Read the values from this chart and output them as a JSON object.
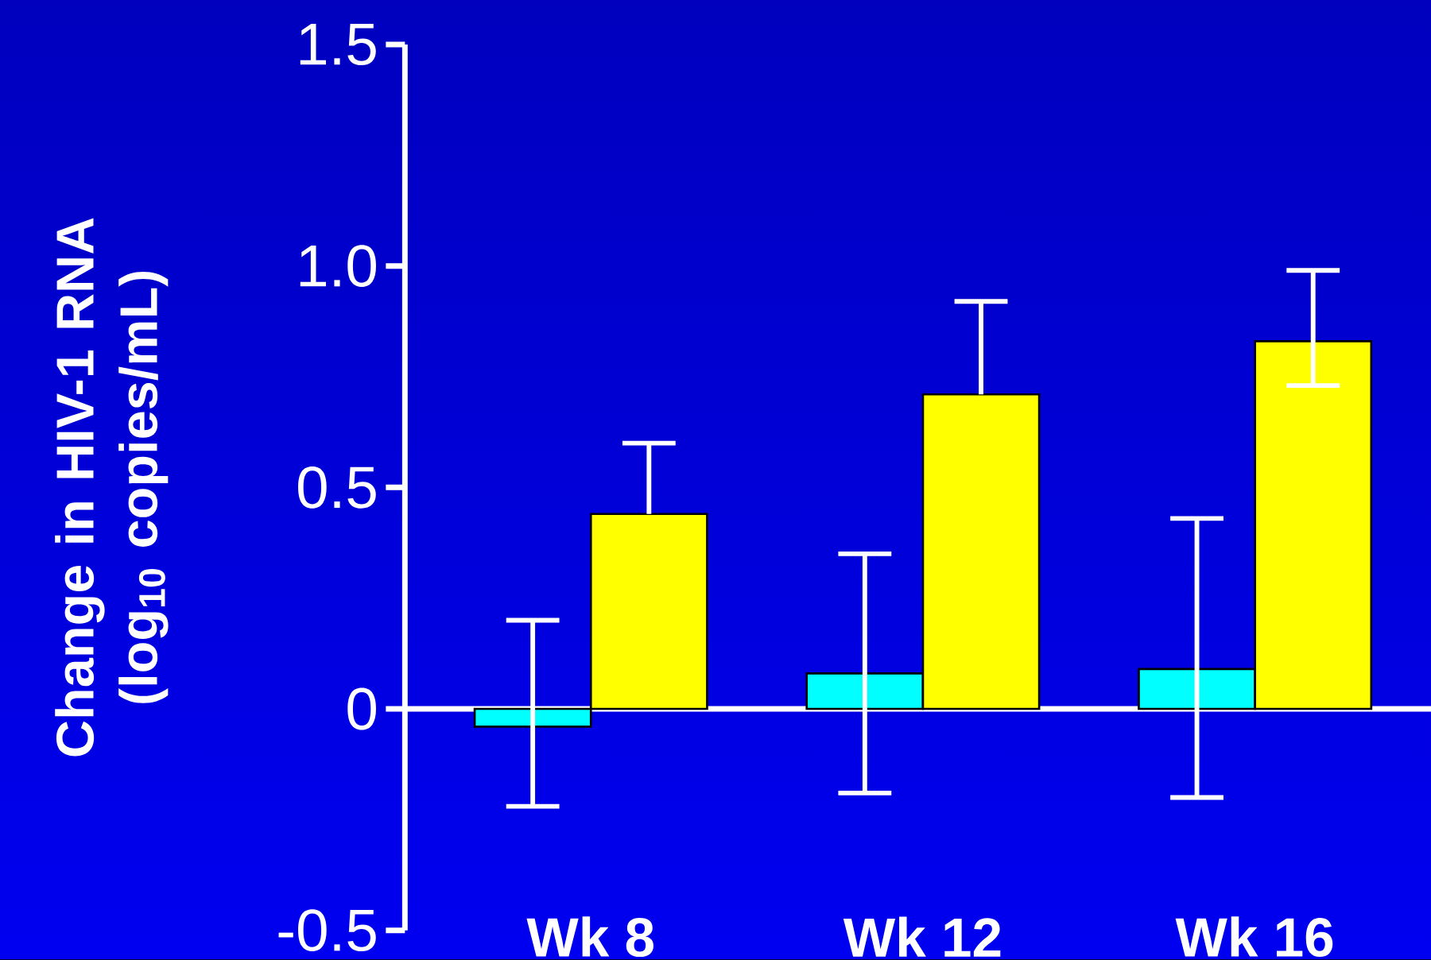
{
  "chart_data": {
    "type": "bar",
    "ylabel": "Change in HIV-1 RNA (log$_{10}$ copies/mL)",
    "categories": [
      "Wk 8",
      "Wk 12",
      "Wk 16"
    ],
    "series": [
      {
        "color": "#00ffff",
        "values": [
          -0.04,
          0.08,
          0.09
        ],
        "errors": [
          [
            -0.22,
            0.2
          ],
          [
            -0.19,
            0.35
          ],
          [
            -0.2,
            0.43
          ]
        ]
      },
      {
        "color": "#ffff00",
        "values": [
          0.44,
          0.71,
          0.83
        ],
        "errors": [
          [
            0.44,
            0.6
          ],
          [
            0.71,
            0.92
          ],
          [
            0.73,
            0.99
          ]
        ]
      }
    ],
    "ylim": [
      -0.5,
      1.5
    ],
    "yticks": [
      -0.5,
      0,
      0.5,
      {
        "value": 1,
        "label": "1.0"
      },
      1.5
    ]
  }
}
